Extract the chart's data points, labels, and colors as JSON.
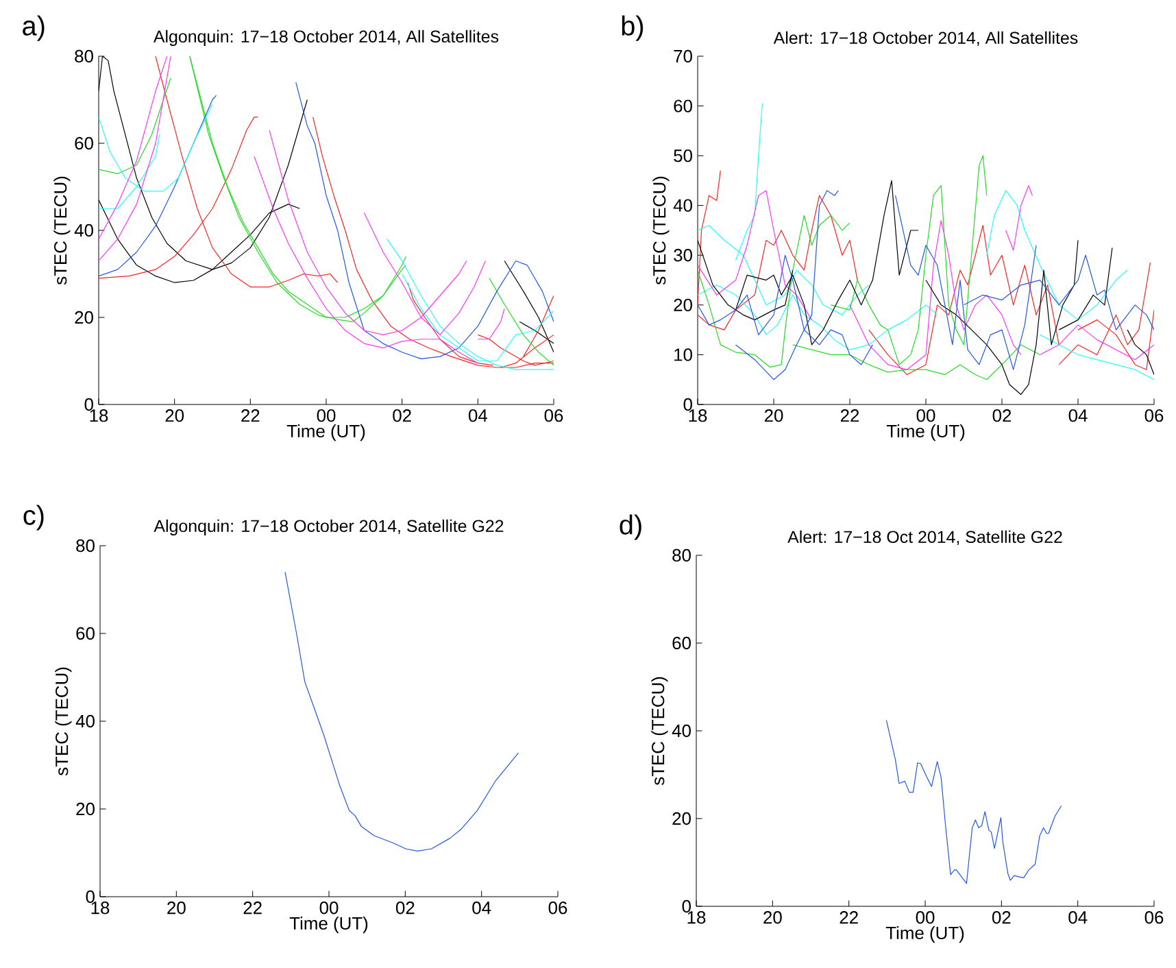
{
  "chart_data": [
    {
      "type": "line",
      "title": "Algonquin: 17−18 October 2014, All Satellites",
      "xlabel": "Time (UT)",
      "ylabel": "sTEC (TECU)",
      "annotations": [
        "a)"
      ],
      "xlim": [
        "2014-10-17T18:00",
        "2014-10-18T06:00"
      ],
      "xticks": [
        {
          "value": "2014-10-17T18:00",
          "label": "18"
        },
        {
          "value": "2014-10-17T20:00",
          "label": "20"
        },
        {
          "value": "2014-10-17T22:00",
          "label": "22"
        },
        {
          "value": "2014-10-18T00:00",
          "label": "00"
        },
        {
          "value": "2014-10-18T02:00",
          "label": "02"
        },
        {
          "value": "2014-10-18T04:00",
          "label": "04"
        },
        {
          "value": "2014-10-18T06:00",
          "label": "06"
        }
      ],
      "ylim": [
        0,
        80
      ],
      "yticks": [
        0,
        20,
        40,
        60,
        80
      ],
      "series": [
        {
          "color": "#000000",
          "x": [
            "2014-10-17T18:00",
            "2014-10-17T18:06",
            "2014-10-17T18:15",
            "2014-10-17T18:24",
            "2014-10-17T18:42",
            "2014-10-17T19:00",
            "2014-10-17T19:24",
            "2014-10-17T19:48",
            "2014-10-17T20:18",
            "2014-10-17T21:00",
            "2014-10-17T21:30",
            "2014-10-17T22:00",
            "2014-10-17T22:30",
            "2014-10-17T23:00",
            "2014-10-17T23:30"
          ],
          "values": [
            72,
            80,
            79,
            72,
            62,
            52,
            43,
            37,
            33,
            31,
            32.5,
            36,
            43,
            55,
            70
          ]
        },
        {
          "color": "#000000",
          "x": [
            "2014-10-17T18:00",
            "2014-10-17T18:30",
            "2014-10-17T19:00",
            "2014-10-17T19:30",
            "2014-10-17T20:00",
            "2014-10-17T20:30",
            "2014-10-17T21:00",
            "2014-10-17T21:30",
            "2014-10-17T22:00",
            "2014-10-17T22:30",
            "2014-10-17T23:00",
            "2014-10-17T23:18"
          ],
          "values": [
            47,
            38,
            32,
            29.5,
            28,
            28.5,
            31,
            35,
            39,
            44,
            46,
            45
          ]
        },
        {
          "color": "#000000",
          "x": [
            "2014-10-18T04:42",
            "2014-10-18T05:12",
            "2014-10-18T05:36",
            "2014-10-18T06:00"
          ],
          "values": [
            33,
            26,
            20,
            12
          ]
        },
        {
          "color": "#000000",
          "x": [
            "2014-10-18T05:06",
            "2014-10-18T05:30",
            "2014-10-18T06:00"
          ],
          "values": [
            19,
            17,
            14
          ]
        },
        {
          "color": "#ff2020",
          "x": [
            "2014-10-17T18:00",
            "2014-10-17T18:48",
            "2014-10-17T19:30",
            "2014-10-17T20:00",
            "2014-10-17T20:30",
            "2014-10-17T21:00",
            "2014-10-17T21:30",
            "2014-10-17T21:54",
            "2014-10-17T22:06",
            "2014-10-17T22:12"
          ],
          "values": [
            29,
            29.5,
            31,
            34,
            39,
            45,
            54,
            63,
            66,
            66
          ]
        },
        {
          "color": "#ff2020",
          "x": [
            "2014-10-17T19:30",
            "2014-10-17T19:48",
            "2014-10-17T20:12",
            "2014-10-17T20:36",
            "2014-10-17T21:00",
            "2014-10-17T21:30",
            "2014-10-17T22:00",
            "2014-10-17T22:30",
            "2014-10-17T23:00",
            "2014-10-17T23:24",
            "2014-10-17T23:48",
            "2014-10-18T00:06",
            "2014-10-18T00:18"
          ],
          "values": [
            80,
            70,
            57,
            45,
            36,
            30,
            27,
            27,
            28.5,
            30,
            29.5,
            30,
            28
          ]
        },
        {
          "color": "#ff2020",
          "x": [
            "2014-10-17T23:39",
            "2014-10-17T23:54",
            "2014-10-18T00:12",
            "2014-10-18T00:30",
            "2014-10-18T00:48",
            "2014-10-18T01:12",
            "2014-10-18T01:42",
            "2014-10-18T02:12",
            "2014-10-18T02:42",
            "2014-10-18T03:18",
            "2014-10-18T04:00",
            "2014-10-18T04:30",
            "2014-10-18T05:00",
            "2014-10-18T05:30",
            "2014-10-18T06:00"
          ],
          "values": [
            66,
            57,
            48,
            40,
            31,
            24,
            18,
            15,
            13,
            11,
            9,
            8.5,
            8.5,
            9.5,
            9.5
          ]
        },
        {
          "color": "#ff2020",
          "x": [
            "2014-10-18T02:09",
            "2014-10-18T02:18",
            "2014-10-18T02:36",
            "2014-10-18T03:00",
            "2014-10-18T03:30",
            "2014-10-18T04:00",
            "2014-10-18T04:24"
          ],
          "values": [
            28,
            24,
            20,
            15,
            11,
            9.5,
            9
          ]
        },
        {
          "color": "#ff2020",
          "x": [
            "2014-10-18T04:00",
            "2014-10-18T04:18",
            "2014-10-18T04:36",
            "2014-10-18T04:48",
            "2014-10-18T05:12",
            "2014-10-18T05:30",
            "2014-10-18T06:00"
          ],
          "values": [
            16,
            15,
            13,
            12,
            10,
            9,
            10
          ]
        },
        {
          "color": "#ff2020",
          "x": [
            "2014-10-18T04:36",
            "2014-10-18T05:00",
            "2014-10-18T05:30",
            "2014-10-18T06:00"
          ],
          "values": [
            8.5,
            9.5,
            13,
            16
          ]
        },
        {
          "color": "#ff2020",
          "x": [
            "2014-10-18T05:12",
            "2014-10-18T05:36",
            "2014-10-18T06:00"
          ],
          "values": [
            11,
            17,
            25
          ]
        },
        {
          "color": "#22dd22",
          "x": [
            "2014-10-17T18:00",
            "2014-10-17T18:30",
            "2014-10-17T19:00",
            "2014-10-17T19:24",
            "2014-10-17T19:54"
          ],
          "values": [
            54,
            53,
            55,
            62,
            75
          ]
        },
        {
          "color": "#22dd22",
          "x": [
            "2014-10-17T20:24",
            "2014-10-17T20:42",
            "2014-10-17T21:00",
            "2014-10-17T21:24",
            "2014-10-17T21:48",
            "2014-10-17T22:12",
            "2014-10-17T22:36",
            "2014-10-17T23:00",
            "2014-10-17T23:30",
            "2014-10-18T00:00",
            "2014-10-18T00:30",
            "2014-10-18T01:00",
            "2014-10-18T01:30",
            "2014-10-18T02:00",
            "2014-10-18T02:06"
          ],
          "values": [
            80,
            70,
            60,
            50,
            42,
            36,
            30,
            26,
            23,
            20,
            20,
            22,
            25,
            31,
            32
          ]
        },
        {
          "color": "#22dd22",
          "x": [
            "2014-10-17T20:24",
            "2014-10-17T20:54",
            "2014-10-17T21:18",
            "2014-10-17T21:42",
            "2014-10-17T22:12",
            "2014-10-17T22:42",
            "2014-10-17T23:18",
            "2014-10-17T23:48",
            "2014-10-18T00:18",
            "2014-10-18T00:42",
            "2014-10-18T01:00",
            "2014-10-18T01:30",
            "2014-10-18T02:00",
            "2014-10-18T02:06"
          ],
          "values": [
            80,
            62,
            52,
            43,
            35,
            28,
            23,
            20.5,
            19.5,
            19,
            21,
            25,
            32,
            34
          ]
        },
        {
          "color": "#22dd22",
          "x": [
            "2014-10-18T04:18",
            "2014-10-18T04:42",
            "2014-10-18T05:12",
            "2014-10-18T05:36",
            "2014-10-18T06:00"
          ],
          "values": [
            29,
            23,
            16,
            12,
            9
          ]
        },
        {
          "color": "#2255ee",
          "x": [
            "2014-10-17T18:00",
            "2014-10-17T18:30",
            "2014-10-17T19:00",
            "2014-10-17T19:30",
            "2014-10-17T20:00",
            "2014-10-17T20:30",
            "2014-10-17T21:00",
            "2014-10-17T21:06"
          ],
          "values": [
            29.5,
            31,
            35,
            41,
            50,
            60,
            70,
            71
          ]
        },
        {
          "color": "#2255ee",
          "x": [
            "2014-10-17T23:12",
            "2014-10-17T23:30",
            "2014-10-17T23:42",
            "2014-10-18T00:00",
            "2014-10-18T00:18",
            "2014-10-18T00:36",
            "2014-10-18T01:00",
            "2014-10-18T01:30",
            "2014-10-18T02:00",
            "2014-10-18T02:30",
            "2014-10-18T03:00",
            "2014-10-18T03:30",
            "2014-10-18T04:00",
            "2014-10-18T04:30",
            "2014-10-18T05:00",
            "2014-10-18T05:18",
            "2014-10-18T05:42",
            "2014-10-18T06:00"
          ],
          "values": [
            74,
            64,
            60,
            48,
            40,
            28,
            17,
            14,
            12,
            10.5,
            11,
            13,
            18,
            26,
            33,
            32,
            26,
            19
          ]
        },
        {
          "color": "#22ffff",
          "x": [
            "2014-10-17T18:00",
            "2014-10-17T18:18",
            "2014-10-17T18:42",
            "2014-10-17T19:12",
            "2014-10-17T19:42",
            "2014-10-17T20:06",
            "2014-10-17T20:30",
            "2014-10-17T21:00"
          ],
          "values": [
            66,
            58,
            52,
            49,
            49,
            52,
            60,
            69
          ]
        },
        {
          "color": "#22ffff",
          "x": [
            "2014-10-17T18:00",
            "2014-10-17T18:30",
            "2014-10-17T19:00",
            "2014-10-17T19:30",
            "2014-10-17T19:36"
          ],
          "values": [
            45,
            45,
            50,
            57,
            62
          ]
        },
        {
          "color": "#22ffff",
          "x": [
            "2014-10-18T01:36",
            "2014-10-18T02:00",
            "2014-10-18T02:30",
            "2014-10-18T03:00",
            "2014-10-18T03:30",
            "2014-10-18T04:00",
            "2014-10-18T04:30",
            "2014-10-18T05:00",
            "2014-10-18T06:00"
          ],
          "values": [
            38,
            33,
            25,
            18,
            14,
            11,
            9,
            8,
            8
          ]
        },
        {
          "color": "#22ffff",
          "x": [
            "2014-10-18T02:00",
            "2014-10-18T02:30",
            "2014-10-18T03:00",
            "2014-10-18T03:30",
            "2014-10-18T04:00",
            "2014-10-18T04:30",
            "2014-10-18T05:00",
            "2014-10-18T05:30",
            "2014-10-18T06:00"
          ],
          "values": [
            30,
            22,
            16,
            13,
            10,
            10,
            16,
            17,
            21.5
          ]
        },
        {
          "color": "#ff33ff",
          "x": [
            "2014-10-17T18:00",
            "2014-10-17T18:30",
            "2014-10-17T19:00",
            "2014-10-17T19:30",
            "2014-10-17T19:48"
          ],
          "values": [
            38,
            46,
            56,
            72,
            80
          ]
        },
        {
          "color": "#ff33ff",
          "x": [
            "2014-10-17T18:00",
            "2014-10-17T18:30",
            "2014-10-17T19:00",
            "2014-10-17T19:30",
            "2014-10-17T19:54"
          ],
          "values": [
            33,
            38,
            46,
            60,
            80
          ]
        },
        {
          "color": "#ff33ff",
          "x": [
            "2014-10-17T22:06",
            "2014-10-17T22:36",
            "2014-10-17T23:00",
            "2014-10-17T23:30",
            "2014-10-18T00:00",
            "2014-10-18T00:30",
            "2014-10-18T01:00",
            "2014-10-18T01:30",
            "2014-10-18T02:00",
            "2014-10-18T02:30",
            "2014-10-18T03:00",
            "2014-10-18T03:30",
            "2014-10-18T04:00"
          ],
          "values": [
            57,
            45,
            37,
            29,
            22,
            17,
            14,
            13,
            14.5,
            15,
            15,
            12,
            9.5
          ]
        },
        {
          "color": "#ff33ff",
          "x": [
            "2014-10-17T22:30",
            "2014-10-17T23:00",
            "2014-10-17T23:30",
            "2014-10-18T00:00",
            "2014-10-18T00:30",
            "2014-10-18T01:00",
            "2014-10-18T01:30",
            "2014-10-18T02:00",
            "2014-10-18T02:30",
            "2014-10-18T03:00",
            "2014-10-18T03:30",
            "2014-10-18T03:42"
          ],
          "values": [
            63,
            47,
            35,
            27,
            21,
            17,
            16,
            17,
            20,
            25,
            30,
            33
          ]
        },
        {
          "color": "#ff33ff",
          "x": [
            "2014-10-18T01:00",
            "2014-10-18T01:30",
            "2014-10-18T02:00",
            "2014-10-18T02:30",
            "2014-10-18T03:00",
            "2014-10-18T03:30",
            "2014-10-18T03:54",
            "2014-10-18T04:12"
          ],
          "values": [
            44,
            35,
            28,
            20,
            16,
            21,
            27,
            33
          ]
        },
        {
          "color": "#ff33ff",
          "x": [
            "2014-10-18T04:00",
            "2014-10-18T04:18",
            "2014-10-18T04:36",
            "2014-10-18T04:42"
          ],
          "values": [
            15,
            15,
            19,
            22
          ]
        }
      ]
    },
    {
      "type": "line",
      "title": "Alert: 17−18 October 2014, All Satellites",
      "xlabel": "Time (UT)",
      "ylabel": "sTEC (TECU)",
      "annotations": [
        "b)"
      ],
      "xlim": [
        "2014-10-17T18:00",
        "2014-10-18T06:00"
      ],
      "xticks": [
        {
          "value": "2014-10-17T18:00",
          "label": "18"
        },
        {
          "value": "2014-10-17T20:00",
          "label": "20"
        },
        {
          "value": "2014-10-17T22:00",
          "label": "22"
        },
        {
          "value": "2014-10-18T00:00",
          "label": "00"
        },
        {
          "value": "2014-10-18T02:00",
          "label": "02"
        },
        {
          "value": "2014-10-18T04:00",
          "label": "04"
        },
        {
          "value": "2014-10-18T06:00",
          "label": "06"
        }
      ],
      "ylim": [
        0,
        70
      ],
      "yticks": [
        0,
        10,
        20,
        30,
        40,
        50,
        60,
        70
      ],
      "series": [
        {
          "color": "#ff2020",
          "x": [
            "2014-10-17T18:00",
            "2014-10-17T18:06",
            "2014-10-17T18:18",
            "2014-10-17T18:30",
            "2014-10-17T18:36"
          ],
          "values": [
            20,
            35,
            42,
            41,
            47
          ]
        },
        {
          "color": "#ff2020",
          "x": [
            "2014-10-17T18:00",
            "2014-10-17T18:18",
            "2014-10-17T18:42",
            "2014-10-17T19:00",
            "2014-10-17T19:30",
            "2014-10-17T19:48",
            "2014-10-17T20:00",
            "2014-10-17T20:12",
            "2014-10-17T20:30",
            "2014-10-17T20:48",
            "2014-10-17T21:00",
            "2014-10-17T21:12",
            "2014-10-17T21:30",
            "2014-10-17T21:48",
            "2014-10-17T22:00",
            "2014-10-17T22:12"
          ],
          "values": [
            18,
            16,
            15,
            19,
            22,
            33,
            32,
            35,
            30,
            27,
            35,
            42,
            38,
            30,
            33,
            25
          ]
        },
        {
          "color": "#ff2020",
          "x": [
            "2014-10-17T22:30",
            "2014-10-17T23:00",
            "2014-10-17T23:30",
            "2014-10-18T00:00",
            "2014-10-18T00:18",
            "2014-10-18T00:36",
            "2014-10-18T00:54",
            "2014-10-18T01:06",
            "2014-10-18T01:18",
            "2014-10-18T01:30",
            "2014-10-18T01:42",
            "2014-10-18T02:00",
            "2014-10-18T02:18",
            "2014-10-18T02:36",
            "2014-10-18T02:54",
            "2014-10-18T03:12",
            "2014-10-18T03:30"
          ],
          "values": [
            15,
            10,
            6,
            8,
            20,
            18,
            27,
            24,
            30,
            36,
            26,
            30,
            20,
            28,
            18,
            24,
            12
          ]
        },
        {
          "color": "#ff2020",
          "x": [
            "2014-10-18T03:30",
            "2014-10-18T04:00",
            "2014-10-18T04:30",
            "2014-10-18T05:00",
            "2014-10-18T05:18",
            "2014-10-18T05:36",
            "2014-10-18T05:54"
          ],
          "values": [
            8,
            12,
            10,
            18,
            12,
            15,
            28.5
          ]
        },
        {
          "color": "#ff2020",
          "x": [
            "2014-10-18T04:00",
            "2014-10-18T04:30",
            "2014-10-18T05:00",
            "2014-10-18T05:30",
            "2014-10-18T05:48",
            "2014-10-18T06:00"
          ],
          "values": [
            15,
            17,
            14,
            8,
            7,
            19
          ]
        },
        {
          "color": "#22ffff",
          "x": [
            "2014-10-17T18:00",
            "2014-10-17T18:18",
            "2014-10-17T18:42",
            "2014-10-17T19:12",
            "2014-10-17T19:30",
            "2014-10-17T19:48",
            "2014-10-17T20:18",
            "2014-10-17T20:36",
            "2014-10-17T21:00",
            "2014-10-17T21:18",
            "2014-10-17T21:48",
            "2014-10-17T22:12",
            "2014-10-17T22:30"
          ],
          "values": [
            35,
            36,
            33,
            30,
            25,
            20,
            22,
            27,
            24,
            20,
            18,
            22,
            24
          ]
        },
        {
          "color": "#22ffff",
          "x": [
            "2014-10-17T19:00",
            "2014-10-17T19:18",
            "2014-10-17T19:30",
            "2014-10-17T19:36",
            "2014-10-17T19:42"
          ],
          "values": [
            29,
            35,
            38,
            50,
            60.5
          ]
        },
        {
          "color": "#22ffff",
          "x": [
            "2014-10-17T18:00",
            "2014-10-17T18:30",
            "2014-10-17T19:00",
            "2014-10-17T19:30",
            "2014-10-17T19:48",
            "2014-10-17T20:06",
            "2014-10-17T20:30",
            "2014-10-17T20:48",
            "2014-10-17T21:12",
            "2014-10-17T21:36",
            "2014-10-17T22:00",
            "2014-10-17T22:30",
            "2014-10-17T23:00",
            "2014-10-17T23:30",
            "2014-10-18T00:00",
            "2014-10-18T00:18"
          ],
          "values": [
            22,
            24,
            22,
            18,
            14,
            16,
            22,
            18,
            16,
            13,
            11,
            12,
            15,
            17,
            20,
            18
          ]
        },
        {
          "color": "#22ffff",
          "x": [
            "2014-10-18T01:36",
            "2014-10-18T01:48",
            "2014-10-18T02:06",
            "2014-10-18T02:24",
            "2014-10-18T02:36",
            "2014-10-18T03:00",
            "2014-10-18T03:30",
            "2014-10-18T04:00",
            "2014-10-18T04:30",
            "2014-10-18T05:00",
            "2014-10-18T05:18"
          ],
          "values": [
            30,
            38,
            43,
            40,
            35,
            28,
            20,
            17,
            20,
            25,
            27
          ]
        },
        {
          "color": "#22ffff",
          "x": [
            "2014-10-18T03:00",
            "2014-10-18T03:30",
            "2014-10-18T04:00",
            "2014-10-18T04:30",
            "2014-10-18T05:00",
            "2014-10-18T05:30",
            "2014-10-18T06:00"
          ],
          "values": [
            14,
            12,
            10,
            9,
            8,
            7,
            5
          ]
        },
        {
          "color": "#ff33ff",
          "x": [
            "2014-10-17T18:00",
            "2014-10-17T18:30",
            "2014-10-17T19:00",
            "2014-10-17T19:18",
            "2014-10-17T19:36",
            "2014-10-17T19:48",
            "2014-10-17T20:00",
            "2014-10-17T20:18",
            "2014-10-17T20:36",
            "2014-10-17T21:00"
          ],
          "values": [
            28,
            22,
            25,
            32,
            42,
            43,
            35,
            24,
            22,
            17
          ]
        },
        {
          "color": "#ff33ff",
          "x": [
            "2014-10-17T22:00",
            "2014-10-17T22:30",
            "2014-10-17T23:00",
            "2014-10-17T23:30",
            "2014-10-18T00:00",
            "2014-10-18T00:12",
            "2014-10-18T00:24",
            "2014-10-18T00:36",
            "2014-10-18T00:48",
            "2014-10-18T01:00",
            "2014-10-18T01:18",
            "2014-10-18T01:36",
            "2014-10-18T02:00",
            "2014-10-18T02:18",
            "2014-10-18T02:30"
          ],
          "values": [
            20,
            12,
            8,
            7,
            10,
            28,
            37,
            30,
            20,
            15,
            20,
            22,
            18,
            12,
            10
          ]
        },
        {
          "color": "#ff33ff",
          "x": [
            "2014-10-18T02:06",
            "2014-10-18T02:18",
            "2014-10-18T02:30",
            "2014-10-18T02:42",
            "2014-10-18T02:48"
          ],
          "values": [
            35,
            31,
            40,
            44,
            42
          ]
        },
        {
          "color": "#ff33ff",
          "x": [
            "2014-10-18T03:00",
            "2014-10-18T03:30",
            "2014-10-18T04:00",
            "2014-10-18T04:30",
            "2014-10-18T05:00",
            "2014-10-18T05:30",
            "2014-10-18T06:00"
          ],
          "values": [
            10,
            12,
            16,
            13,
            11,
            9,
            12
          ]
        },
        {
          "color": "#22dd22",
          "x": [
            "2014-10-17T18:00",
            "2014-10-17T18:18",
            "2014-10-17T18:36",
            "2014-10-17T19:00",
            "2014-10-17T19:30",
            "2014-10-17T19:54",
            "2014-10-17T20:12",
            "2014-10-17T20:18",
            "2014-10-17T20:30",
            "2014-10-17T20:48",
            "2014-10-17T21:00",
            "2014-10-17T21:12",
            "2014-10-17T21:30",
            "2014-10-17T21:48",
            "2014-10-17T22:00"
          ],
          "values": [
            27,
            20,
            12,
            10.5,
            10,
            7.5,
            8,
            15,
            27,
            38,
            32,
            36,
            38,
            35,
            36.5
          ]
        },
        {
          "color": "#22dd22",
          "x": [
            "2014-10-17T21:30",
            "2014-10-17T22:00",
            "2014-10-17T22:12",
            "2014-10-17T22:30",
            "2014-10-17T22:48",
            "2014-10-17T23:00",
            "2014-10-17T23:18",
            "2014-10-17T23:36",
            "2014-10-17T23:48",
            "2014-10-18T00:00",
            "2014-10-18T00:12",
            "2014-10-18T00:24",
            "2014-10-18T00:36",
            "2014-10-18T00:48",
            "2014-10-18T01:00",
            "2014-10-18T01:12",
            "2014-10-18T01:24",
            "2014-10-18T01:30",
            "2014-10-18T01:36"
          ],
          "values": [
            20,
            19,
            25,
            20,
            16,
            15,
            8,
            10,
            15,
            30,
            42,
            44,
            20,
            15,
            12,
            30,
            48,
            50,
            42
          ]
        },
        {
          "color": "#22dd22",
          "x": [
            "2014-10-17T20:30",
            "2014-10-17T21:00",
            "2014-10-17T21:30",
            "2014-10-17T22:00",
            "2014-10-17T22:30",
            "2014-10-17T23:00",
            "2014-10-17T23:30",
            "2014-10-18T00:00",
            "2014-10-18T00:30",
            "2014-10-18T00:54",
            "2014-10-18T01:18",
            "2014-10-18T01:36",
            "2014-10-18T02:00",
            "2014-10-18T02:30",
            "2014-10-18T03:00"
          ],
          "values": [
            12,
            11,
            10,
            10,
            8,
            6.5,
            7,
            7,
            6,
            8,
            6,
            5,
            8,
            12,
            10
          ]
        },
        {
          "color": "#000000",
          "x": [
            "2014-10-17T18:00",
            "2014-10-17T18:24",
            "2014-10-17T18:48",
            "2014-10-17T19:12",
            "2014-10-17T19:30",
            "2014-10-17T20:00",
            "2014-10-17T20:18",
            "2014-10-17T20:30"
          ],
          "values": [
            33,
            24,
            20,
            18,
            17,
            19,
            20,
            27
          ]
        },
        {
          "color": "#000000",
          "x": [
            "2014-10-17T19:00",
            "2014-10-17T19:18",
            "2014-10-17T19:48",
            "2014-10-17T20:00",
            "2014-10-17T20:12",
            "2014-10-17T20:30",
            "2014-10-17T20:48",
            "2014-10-17T21:00",
            "2014-10-17T21:18",
            "2014-10-17T21:42",
            "2014-10-17T22:00",
            "2014-10-17T22:18",
            "2014-10-17T22:36",
            "2014-10-17T22:54",
            "2014-10-17T23:06",
            "2014-10-17T23:18",
            "2014-10-17T23:36",
            "2014-10-17T23:48"
          ],
          "values": [
            19,
            26,
            25,
            26,
            22,
            26,
            20,
            12,
            15,
            21,
            25,
            20,
            25,
            38,
            45,
            26,
            35,
            35
          ]
        },
        {
          "color": "#000000",
          "x": [
            "2014-10-18T00:00",
            "2014-10-18T00:24",
            "2014-10-18T00:48",
            "2014-10-18T01:12",
            "2014-10-18T01:36",
            "2014-10-18T02:00",
            "2014-10-18T02:12",
            "2014-10-18T02:30",
            "2014-10-18T02:42",
            "2014-10-18T02:54",
            "2014-10-18T03:06",
            "2014-10-18T03:18",
            "2014-10-18T03:36",
            "2014-10-18T03:54",
            "2014-10-18T04:00"
          ],
          "values": [
            25,
            20,
            18,
            15,
            12,
            8,
            4,
            2,
            4,
            12,
            27,
            12,
            20,
            24,
            33
          ]
        },
        {
          "color": "#000000",
          "x": [
            "2014-10-18T03:30",
            "2014-10-18T04:00",
            "2014-10-18T04:24",
            "2014-10-18T04:42",
            "2014-10-18T04:54"
          ],
          "values": [
            15,
            17,
            22,
            20,
            31.5
          ]
        },
        {
          "color": "#000000",
          "x": [
            "2014-10-18T05:18",
            "2014-10-18T05:30",
            "2014-10-18T05:48",
            "2014-10-18T06:00"
          ],
          "values": [
            15,
            12,
            10,
            6
          ]
        },
        {
          "color": "#2255ee",
          "x": [
            "2014-10-17T18:00",
            "2014-10-17T18:18",
            "2014-10-17T18:36",
            "2014-10-17T19:00",
            "2014-10-17T19:18",
            "2014-10-17T19:36",
            "2014-10-17T20:00",
            "2014-10-17T20:18",
            "2014-10-17T20:30",
            "2014-10-17T20:48",
            "2014-10-17T21:12",
            "2014-10-17T21:30",
            "2014-10-17T21:48",
            "2014-10-17T22:00",
            "2014-10-17T22:18",
            "2014-10-17T22:36"
          ],
          "values": [
            20,
            16,
            17,
            19,
            22,
            14,
            18,
            30,
            25,
            15,
            12,
            15,
            14,
            10,
            8,
            12
          ]
        },
        {
          "color": "#2255ee",
          "x": [
            "2014-10-17T19:00",
            "2014-10-17T19:30",
            "2014-10-17T20:00",
            "2014-10-17T20:18",
            "2014-10-17T20:36",
            "2014-10-17T21:00",
            "2014-10-17T21:12",
            "2014-10-17T21:24",
            "2014-10-17T21:36",
            "2014-10-17T21:42"
          ],
          "values": [
            12,
            9,
            5,
            7,
            12,
            18,
            40,
            43,
            42,
            43
          ]
        },
        {
          "color": "#2255ee",
          "x": [
            "2014-10-17T23:12",
            "2014-10-17T23:24",
            "2014-10-17T23:36",
            "2014-10-17T23:48",
            "2014-10-18T00:00",
            "2014-10-18T00:18",
            "2014-10-18T00:30",
            "2014-10-18T00:42",
            "2014-10-18T00:54",
            "2014-10-18T01:06",
            "2014-10-18T01:24",
            "2014-10-18T01:42",
            "2014-10-18T02:00",
            "2014-10-18T02:18",
            "2014-10-18T02:36",
            "2014-10-18T02:54"
          ],
          "values": [
            42,
            35,
            28,
            26,
            32,
            28,
            20,
            12,
            25,
            11,
            8,
            14,
            15,
            7,
            16,
            32
          ]
        },
        {
          "color": "#2255ee",
          "x": [
            "2014-10-18T01:00",
            "2014-10-18T01:30",
            "2014-10-18T02:00",
            "2014-10-18T02:30",
            "2014-10-18T03:00",
            "2014-10-18T03:30",
            "2014-10-18T04:00",
            "2014-10-18T04:12",
            "2014-10-18T04:30",
            "2014-10-18T04:42",
            "2014-10-18T05:00",
            "2014-10-18T05:30",
            "2014-10-18T05:48",
            "2014-10-18T06:00"
          ],
          "values": [
            20,
            22,
            21,
            24,
            25,
            20,
            25,
            30,
            22,
            23,
            15,
            20,
            18,
            15
          ]
        }
      ]
    },
    {
      "type": "line",
      "title": "Algonquin: 17−18 October 2014, Satellite G22",
      "xlabel": "Time (UT)",
      "ylabel": "sTEC (TECU)",
      "annotations": [
        "c)"
      ],
      "xlim": [
        "2014-10-17T18:00",
        "2014-10-18T06:00"
      ],
      "xticks": [
        {
          "value": "2014-10-17T18:00",
          "label": "18"
        },
        {
          "value": "2014-10-17T20:00",
          "label": "20"
        },
        {
          "value": "2014-10-17T22:00",
          "label": "22"
        },
        {
          "value": "2014-10-18T00:00",
          "label": "00"
        },
        {
          "value": "2014-10-18T02:00",
          "label": "02"
        },
        {
          "value": "2014-10-18T04:00",
          "label": "04"
        },
        {
          "value": "2014-10-18T06:00",
          "label": "06"
        }
      ],
      "ylim": [
        0,
        80
      ],
      "yticks": [
        0,
        20,
        40,
        60,
        80
      ],
      "series": [
        {
          "color": "#2255ee",
          "x": [
            "2014-10-17T22:51",
            "2014-10-17T23:09",
            "2014-10-17T23:22",
            "2014-10-17T23:38",
            "2014-10-17T23:52",
            "2014-10-18T00:17",
            "2014-10-18T00:32",
            "2014-10-18T00:41",
            "2014-10-18T00:51",
            "2014-10-18T01:11",
            "2014-10-18T01:40",
            "2014-10-18T02:01",
            "2014-10-18T02:19",
            "2014-10-18T02:41",
            "2014-10-18T03:10",
            "2014-10-18T03:28",
            "2014-10-18T03:53",
            "2014-10-18T04:22",
            "2014-10-18T04:58"
          ],
          "values": [
            74,
            60,
            49,
            42.5,
            36.8,
            25.3,
            19.6,
            18.5,
            16,
            13.9,
            12.3,
            10.9,
            10.4,
            10.9,
            13.3,
            15.4,
            19.6,
            26.4,
            32.8
          ]
        }
      ]
    },
    {
      "type": "line",
      "title": "Alert: 17−18 Oct 2014, Satellite G22",
      "xlabel": "Time (UT)",
      "ylabel": "sTEC (TECU)",
      "annotations": [
        "d)"
      ],
      "xlim": [
        "2014-10-17T18:00",
        "2014-10-18T06:00"
      ],
      "xticks": [
        {
          "value": "2014-10-17T18:00",
          "label": "18"
        },
        {
          "value": "2014-10-17T20:00",
          "label": "20"
        },
        {
          "value": "2014-10-17T22:00",
          "label": "22"
        },
        {
          "value": "2014-10-18T00:00",
          "label": "00"
        },
        {
          "value": "2014-10-18T02:00",
          "label": "02"
        },
        {
          "value": "2014-10-18T04:00",
          "label": "04"
        },
        {
          "value": "2014-10-18T06:00",
          "label": "06"
        }
      ],
      "ylim": [
        0,
        80
      ],
      "yticks": [
        0,
        20,
        40,
        60,
        80
      ],
      "series": [
        {
          "color": "#2255ee",
          "x": [
            "2014-10-17T22:59",
            "2014-10-17T23:13",
            "2014-10-17T23:19",
            "2014-10-17T23:28",
            "2014-10-17T23:35",
            "2014-10-17T23:41",
            "2014-10-17T23:48",
            "2014-10-17T23:53",
            "2014-10-18T00:02",
            "2014-10-18T00:10",
            "2014-10-18T00:19",
            "2014-10-18T00:25",
            "2014-10-18T00:32",
            "2014-10-18T00:40",
            "2014-10-18T00:46",
            "2014-10-18T00:49",
            "2014-10-18T01:05",
            "2014-10-18T01:14",
            "2014-10-18T01:19",
            "2014-10-18T01:24",
            "2014-10-18T01:29",
            "2014-10-18T01:34",
            "2014-10-18T01:40",
            "2014-10-18T01:44",
            "2014-10-18T01:49",
            "2014-10-18T01:59",
            "2014-10-18T02:02",
            "2014-10-18T02:10",
            "2014-10-18T02:14",
            "2014-10-18T02:20",
            "2014-10-18T02:28",
            "2014-10-18T02:35",
            "2014-10-18T02:43",
            "2014-10-18T02:53",
            "2014-10-18T03:00",
            "2014-10-18T03:06",
            "2014-10-18T03:11",
            "2014-10-18T03:14",
            "2014-10-18T03:24",
            "2014-10-18T03:34"
          ],
          "values": [
            42.4,
            33.5,
            28,
            28.5,
            26,
            26,
            32.7,
            32.5,
            29.6,
            27.3,
            33,
            29.4,
            18.4,
            7.2,
            8.3,
            8.3,
            5.2,
            17.9,
            19.7,
            17.9,
            18.4,
            21.6,
            17.4,
            16.9,
            13.2,
            20.2,
            14.8,
            7.5,
            5.9,
            7,
            6.7,
            6.5,
            8.3,
            9.6,
            16,
            17.9,
            16.6,
            16.6,
            20.5,
            22.9
          ]
        }
      ]
    }
  ]
}
